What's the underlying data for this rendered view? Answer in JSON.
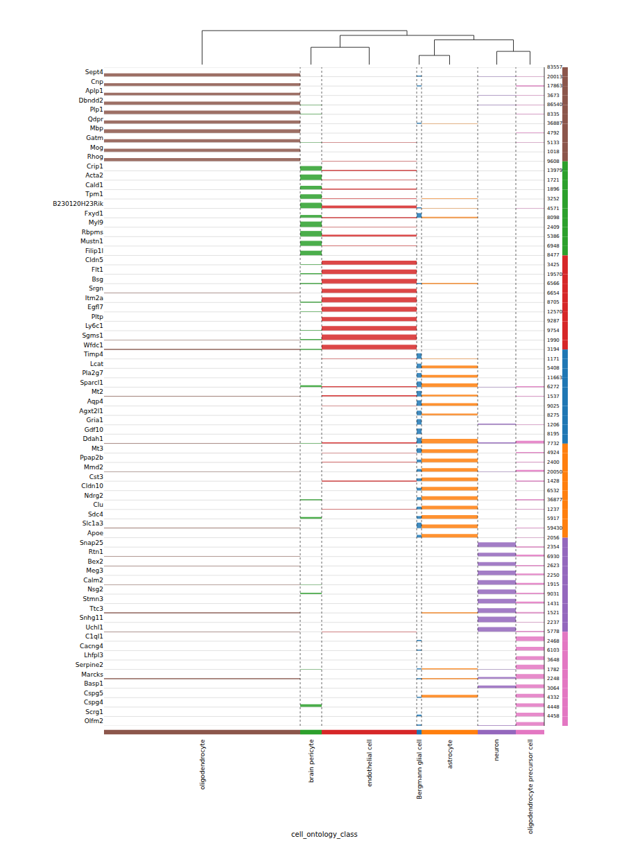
{
  "chart_data": {
    "type": "tracksplot",
    "x_label": "cell_ontology_class",
    "tick_labels": "y",
    "grid": true,
    "groups": [
      {
        "name": "oligodendrocyte",
        "color": "#8c564b",
        "cells": 283
      },
      {
        "name": "brain pericyte",
        "color": "#2ca02c",
        "cells": 31
      },
      {
        "name": "endothelial cell",
        "color": "#d62728",
        "cells": 137
      },
      {
        "name": "Bergmann glial cell",
        "color": "#1f77b4",
        "cells": 7
      },
      {
        "name": "astrocyte",
        "color": "#ff7f0e",
        "cells": 81
      },
      {
        "name": "neuron",
        "color": "#9467bd",
        "cells": 55
      },
      {
        "name": "oligodendrocyte precursor cell",
        "color": "#e377c2",
        "cells": 41
      }
    ],
    "dendrogram": {
      "height": 1,
      "children": [
        "oligodendrocyte",
        {
          "height": 0.86,
          "children": [
            {
              "height": 0.51,
              "children": [
                "brain pericyte",
                "endothelial cell"
              ]
            },
            {
              "height": 0.73,
              "children": [
                {
                  "height": 0.27,
                  "children": [
                    "Bergmann glial cell",
                    "astrocyte"
                  ]
                },
                {
                  "height": 0.39,
                  "children": [
                    "neuron",
                    "oligodendrocyte precursor cell"
                  ]
                }
              ]
            }
          ]
        }
      ]
    },
    "genes": [
      {
        "name": "Sept4",
        "group": "oligodendrocyte",
        "max_label": "83557",
        "levels": [
          0.35,
          0,
          0,
          0.1,
          0,
          0.02,
          0.02
        ]
      },
      {
        "name": "Cnp",
        "group": "oligodendrocyte",
        "max_label": "20013",
        "levels": [
          0.3,
          0,
          0,
          0.05,
          0,
          0,
          0.02
        ]
      },
      {
        "name": "Aplp1",
        "group": "oligodendrocyte",
        "max_label": "17863",
        "levels": [
          0.3,
          0,
          0,
          0,
          0,
          0.03,
          0.02
        ]
      },
      {
        "name": "Dbndd2",
        "group": "oligodendrocyte",
        "max_label": "3673",
        "levels": [
          0.35,
          0.02,
          0,
          0,
          0,
          0.02,
          0.02
        ]
      },
      {
        "name": "Plp1",
        "group": "oligodendrocyte",
        "max_label": "86540",
        "levels": [
          0.4,
          0.02,
          0,
          0,
          0,
          0,
          0.03
        ]
      },
      {
        "name": "Qdpr",
        "group": "oligodendrocyte",
        "max_label": "8335",
        "levels": [
          0.35,
          0,
          0,
          0.05,
          0.02,
          0,
          0
        ]
      },
      {
        "name": "Mbp",
        "group": "oligodendrocyte",
        "max_label": "36887",
        "levels": [
          0.4,
          0,
          0,
          0,
          0,
          0,
          0.02
        ]
      },
      {
        "name": "Gatm",
        "group": "oligodendrocyte",
        "max_label": "4792",
        "levels": [
          0.35,
          0.02,
          0.02,
          0,
          0,
          0,
          0.02
        ]
      },
      {
        "name": "Mog",
        "group": "oligodendrocyte",
        "max_label": "5133",
        "levels": [
          0.35,
          0,
          0,
          0,
          0,
          0,
          0
        ]
      },
      {
        "name": "Rhog",
        "group": "oligodendrocyte",
        "max_label": "1018",
        "levels": [
          0.35,
          0,
          0.02,
          0,
          0,
          0,
          0
        ]
      },
      {
        "name": "Crip1",
        "group": "brain pericyte",
        "max_label": "9608",
        "levels": [
          0,
          0.5,
          0.1,
          0,
          0,
          0,
          0
        ]
      },
      {
        "name": "Acta2",
        "group": "brain pericyte",
        "max_label": "13979",
        "levels": [
          0,
          0.6,
          0.02,
          0,
          0,
          0,
          0
        ]
      },
      {
        "name": "Cald1",
        "group": "brain pericyte",
        "max_label": "1721",
        "levels": [
          0,
          0.4,
          0.1,
          0,
          0,
          0,
          0
        ]
      },
      {
        "name": "Tpm1",
        "group": "brain pericyte",
        "max_label": "1896",
        "levels": [
          0,
          0.5,
          0.05,
          0,
          0.02,
          0,
          0
        ]
      },
      {
        "name": "B230120H23Rik",
        "group": "brain pericyte",
        "max_label": "3252",
        "levels": [
          0,
          0.6,
          0.3,
          0.1,
          0.02,
          0,
          0.02
        ]
      },
      {
        "name": "Fxyd1",
        "group": "brain pericyte",
        "max_label": "4571",
        "levels": [
          0,
          0.3,
          0.02,
          0.5,
          0.1,
          0,
          0
        ]
      },
      {
        "name": "Myl9",
        "group": "brain pericyte",
        "max_label": "8098",
        "levels": [
          0,
          0.6,
          0.05,
          0,
          0,
          0,
          0
        ]
      },
      {
        "name": "Rbpms",
        "group": "brain pericyte",
        "max_label": "2409",
        "levels": [
          0,
          0.6,
          0.2,
          0,
          0,
          0,
          0
        ]
      },
      {
        "name": "Mustn1",
        "group": "brain pericyte",
        "max_label": "5386",
        "levels": [
          0,
          0.55,
          0.05,
          0,
          0,
          0,
          0
        ]
      },
      {
        "name": "Filip1l",
        "group": "brain pericyte",
        "max_label": "6948",
        "levels": [
          0,
          0.5,
          0,
          0,
          0,
          0,
          0
        ]
      },
      {
        "name": "Cldn5",
        "group": "endothelial cell",
        "max_label": "8477",
        "levels": [
          0,
          0.05,
          0.45,
          0,
          0,
          0,
          0
        ]
      },
      {
        "name": "Flt1",
        "group": "endothelial cell",
        "max_label": "3425",
        "levels": [
          0,
          0.05,
          0.5,
          0,
          0,
          0,
          0
        ]
      },
      {
        "name": "Bsg",
        "group": "endothelial cell",
        "max_label": "19570",
        "levels": [
          0,
          0.05,
          0.5,
          0.05,
          0.02,
          0,
          0
        ]
      },
      {
        "name": "Srgn",
        "group": "endothelial cell",
        "max_label": "6566",
        "levels": [
          0.02,
          0,
          0.45,
          0,
          0,
          0,
          0
        ]
      },
      {
        "name": "Itm2a",
        "group": "endothelial cell",
        "max_label": "6654",
        "levels": [
          0,
          0.05,
          0.55,
          0,
          0,
          0,
          0
        ]
      },
      {
        "name": "Egfl7",
        "group": "endothelial cell",
        "max_label": "8705",
        "levels": [
          0,
          0.05,
          0.55,
          0,
          0,
          0,
          0
        ]
      },
      {
        "name": "Pltp",
        "group": "endothelial cell",
        "max_label": "12570",
        "levels": [
          0,
          0,
          0.45,
          0,
          0,
          0,
          0
        ]
      },
      {
        "name": "Ly6c1",
        "group": "endothelial cell",
        "max_label": "9287",
        "levels": [
          0,
          0.02,
          0.5,
          0,
          0,
          0,
          0
        ]
      },
      {
        "name": "Sgms1",
        "group": "endothelial cell",
        "max_label": "9754",
        "levels": [
          0.02,
          0.05,
          0.6,
          0,
          0,
          0,
          0
        ]
      },
      {
        "name": "Wfdc1",
        "group": "endothelial cell",
        "max_label": "1990",
        "levels": [
          0.02,
          0.02,
          0.5,
          0,
          0,
          0,
          0
        ]
      },
      {
        "name": "Timp4",
        "group": "Bergmann glial cell",
        "max_label": "3194",
        "levels": [
          0,
          0,
          0.02,
          0.6,
          0.05,
          0,
          0
        ]
      },
      {
        "name": "Lcat",
        "group": "Bergmann glial cell",
        "max_label": "1171",
        "levels": [
          0,
          0,
          0,
          0.5,
          0.3,
          0,
          0
        ]
      },
      {
        "name": "Pla2g7",
        "group": "Bergmann glial cell",
        "max_label": "5408",
        "levels": [
          0,
          0,
          0,
          0.5,
          0.3,
          0,
          0
        ]
      },
      {
        "name": "Sparcl1",
        "group": "Bergmann glial cell",
        "max_label": "11663",
        "levels": [
          0,
          0.2,
          0.05,
          0.6,
          0.4,
          0.02,
          0.05
        ]
      },
      {
        "name": "Mt2",
        "group": "Bergmann glial cell",
        "max_label": "6272",
        "levels": [
          0.02,
          0,
          0.1,
          0.6,
          0.2,
          0,
          0.02
        ]
      },
      {
        "name": "Aqp4",
        "group": "Bergmann glial cell",
        "max_label": "1537",
        "levels": [
          0,
          0,
          0.02,
          0.6,
          0.3,
          0,
          0
        ]
      },
      {
        "name": "Agxt2l1",
        "group": "Bergmann glial cell",
        "max_label": "9025",
        "levels": [
          0,
          0,
          0,
          0.5,
          0.2,
          0,
          0
        ]
      },
      {
        "name": "Gria1",
        "group": "Bergmann glial cell",
        "max_label": "8275",
        "levels": [
          0,
          0,
          0,
          0.6,
          0,
          0.1,
          0.05
        ]
      },
      {
        "name": "Gdf10",
        "group": "Bergmann glial cell",
        "max_label": "1206",
        "levels": [
          0,
          0,
          0,
          0.6,
          0,
          0,
          0
        ]
      },
      {
        "name": "Ddah1",
        "group": "Bergmann glial cell",
        "max_label": "8195",
        "levels": [
          0.05,
          0.02,
          0.1,
          0.6,
          0.5,
          0.1,
          0.3
        ]
      },
      {
        "name": "Mt3",
        "group": "astrocyte",
        "max_label": "7732",
        "levels": [
          0,
          0,
          0.02,
          0.5,
          0.4,
          0,
          0.05
        ]
      },
      {
        "name": "Ppap2b",
        "group": "astrocyte",
        "max_label": "4924",
        "levels": [
          0,
          0,
          0.02,
          0.3,
          0.4,
          0,
          0.02
        ]
      },
      {
        "name": "Mmd2",
        "group": "astrocyte",
        "max_label": "2400",
        "levels": [
          0.02,
          0,
          0,
          0.3,
          0.4,
          0.02,
          0.2
        ]
      },
      {
        "name": "Cst3",
        "group": "astrocyte",
        "max_label": "20050",
        "levels": [
          0,
          0,
          0.05,
          0.3,
          0.4,
          0,
          0.05
        ]
      },
      {
        "name": "Cldn10",
        "group": "astrocyte",
        "max_label": "1428",
        "levels": [
          0,
          0,
          0,
          0.3,
          0.4,
          0,
          0
        ]
      },
      {
        "name": "Ndrg2",
        "group": "astrocyte",
        "max_label": "6532",
        "levels": [
          0,
          0.05,
          0,
          0.3,
          0.4,
          0,
          0.05
        ]
      },
      {
        "name": "Clu",
        "group": "astrocyte",
        "max_label": "36877",
        "levels": [
          0,
          0,
          0.02,
          0.3,
          0.4,
          0,
          0.02
        ]
      },
      {
        "name": "Sdc4",
        "group": "astrocyte",
        "max_label": "1237",
        "levels": [
          0,
          0.2,
          0,
          0.3,
          0.4,
          0,
          0
        ]
      },
      {
        "name": "Slc1a3",
        "group": "astrocyte",
        "max_label": "5917",
        "levels": [
          0.02,
          0,
          0,
          0.6,
          0.4,
          0,
          0.05
        ]
      },
      {
        "name": "Apoe",
        "group": "astrocyte",
        "max_label": "59430",
        "levels": [
          0,
          0,
          0,
          0.3,
          0.4,
          0,
          0.02
        ]
      },
      {
        "name": "Snap25",
        "group": "neuron",
        "max_label": "2056",
        "levels": [
          0,
          0,
          0,
          0,
          0,
          0.5,
          0.05
        ]
      },
      {
        "name": "Rtn1",
        "group": "neuron",
        "max_label": "2354",
        "levels": [
          0.05,
          0,
          0,
          0,
          0,
          0.4,
          0.2
        ]
      },
      {
        "name": "Bex2",
        "group": "neuron",
        "max_label": "6930",
        "levels": [
          0.02,
          0,
          0,
          0,
          0,
          0.4,
          0.1
        ]
      },
      {
        "name": "Meg3",
        "group": "neuron",
        "max_label": "2623",
        "levels": [
          0,
          0,
          0,
          0,
          0,
          0.5,
          0.2
        ]
      },
      {
        "name": "Calm2",
        "group": "neuron",
        "max_label": "2250",
        "levels": [
          0.02,
          0.02,
          0,
          0,
          0,
          0.5,
          0.2
        ]
      },
      {
        "name": "Nsg2",
        "group": "neuron",
        "max_label": "1915",
        "levels": [
          0,
          0.1,
          0,
          0,
          0,
          0.5,
          0.1
        ]
      },
      {
        "name": "Stmn3",
        "group": "neuron",
        "max_label": "9031",
        "levels": [
          0,
          0,
          0,
          0,
          0,
          0.5,
          0.2
        ]
      },
      {
        "name": "Ttc3",
        "group": "neuron",
        "max_label": "1431",
        "levels": [
          0.02,
          0,
          0,
          0,
          0.02,
          0.5,
          0.1
        ]
      },
      {
        "name": "Snhg11",
        "group": "neuron",
        "max_label": "1521",
        "levels": [
          0,
          0,
          0,
          0,
          0,
          0.6,
          0.05
        ]
      },
      {
        "name": "Uchl1",
        "group": "neuron",
        "max_label": "2237",
        "levels": [
          0.02,
          0,
          0.02,
          0,
          0,
          0.5,
          0.1
        ]
      },
      {
        "name": "C1ql1",
        "group": "oligodendrocyte precursor cell",
        "max_label": "5778",
        "levels": [
          0,
          0,
          0,
          0.1,
          0,
          0,
          0.5
        ]
      },
      {
        "name": "Cacng4",
        "group": "oligodendrocyte precursor cell",
        "max_label": "2468",
        "levels": [
          0,
          0,
          0,
          0.1,
          0,
          0,
          0.4
        ]
      },
      {
        "name": "Lhfpl3",
        "group": "oligodendrocyte precursor cell",
        "max_label": "6103",
        "levels": [
          0,
          0,
          0,
          0,
          0,
          0,
          0.4
        ]
      },
      {
        "name": "Serpine2",
        "group": "oligodendrocyte precursor cell",
        "max_label": "3648",
        "levels": [
          0,
          0.02,
          0,
          0.1,
          0.1,
          0.02,
          0.5
        ]
      },
      {
        "name": "Marcks",
        "group": "oligodendrocyte precursor cell",
        "max_label": "1782",
        "levels": [
          0.02,
          0,
          0,
          0.05,
          0.02,
          0.2,
          0.5
        ]
      },
      {
        "name": "Basp1",
        "group": "oligodendrocyte precursor cell",
        "max_label": "2248",
        "levels": [
          0,
          0,
          0,
          0,
          0,
          0.3,
          0.4
        ]
      },
      {
        "name": "Cspg5",
        "group": "oligodendrocyte precursor cell",
        "max_label": "3064",
        "levels": [
          0,
          0,
          0,
          0.1,
          0.3,
          0,
          0.4
        ]
      },
      {
        "name": "Cspg4",
        "group": "oligodendrocyte precursor cell",
        "max_label": "4332",
        "levels": [
          0,
          0.3,
          0,
          0,
          0,
          0,
          0.4
        ]
      },
      {
        "name": "Scrg1",
        "group": "oligodendrocyte precursor cell",
        "max_label": "4448",
        "levels": [
          0,
          0,
          0,
          0.2,
          0,
          0,
          0.4
        ]
      },
      {
        "name": "Olfm2",
        "group": "oligodendrocyte precursor cell",
        "max_label": "4458",
        "levels": [
          0,
          0,
          0,
          0.1,
          0,
          0.05,
          0.4
        ]
      }
    ]
  }
}
